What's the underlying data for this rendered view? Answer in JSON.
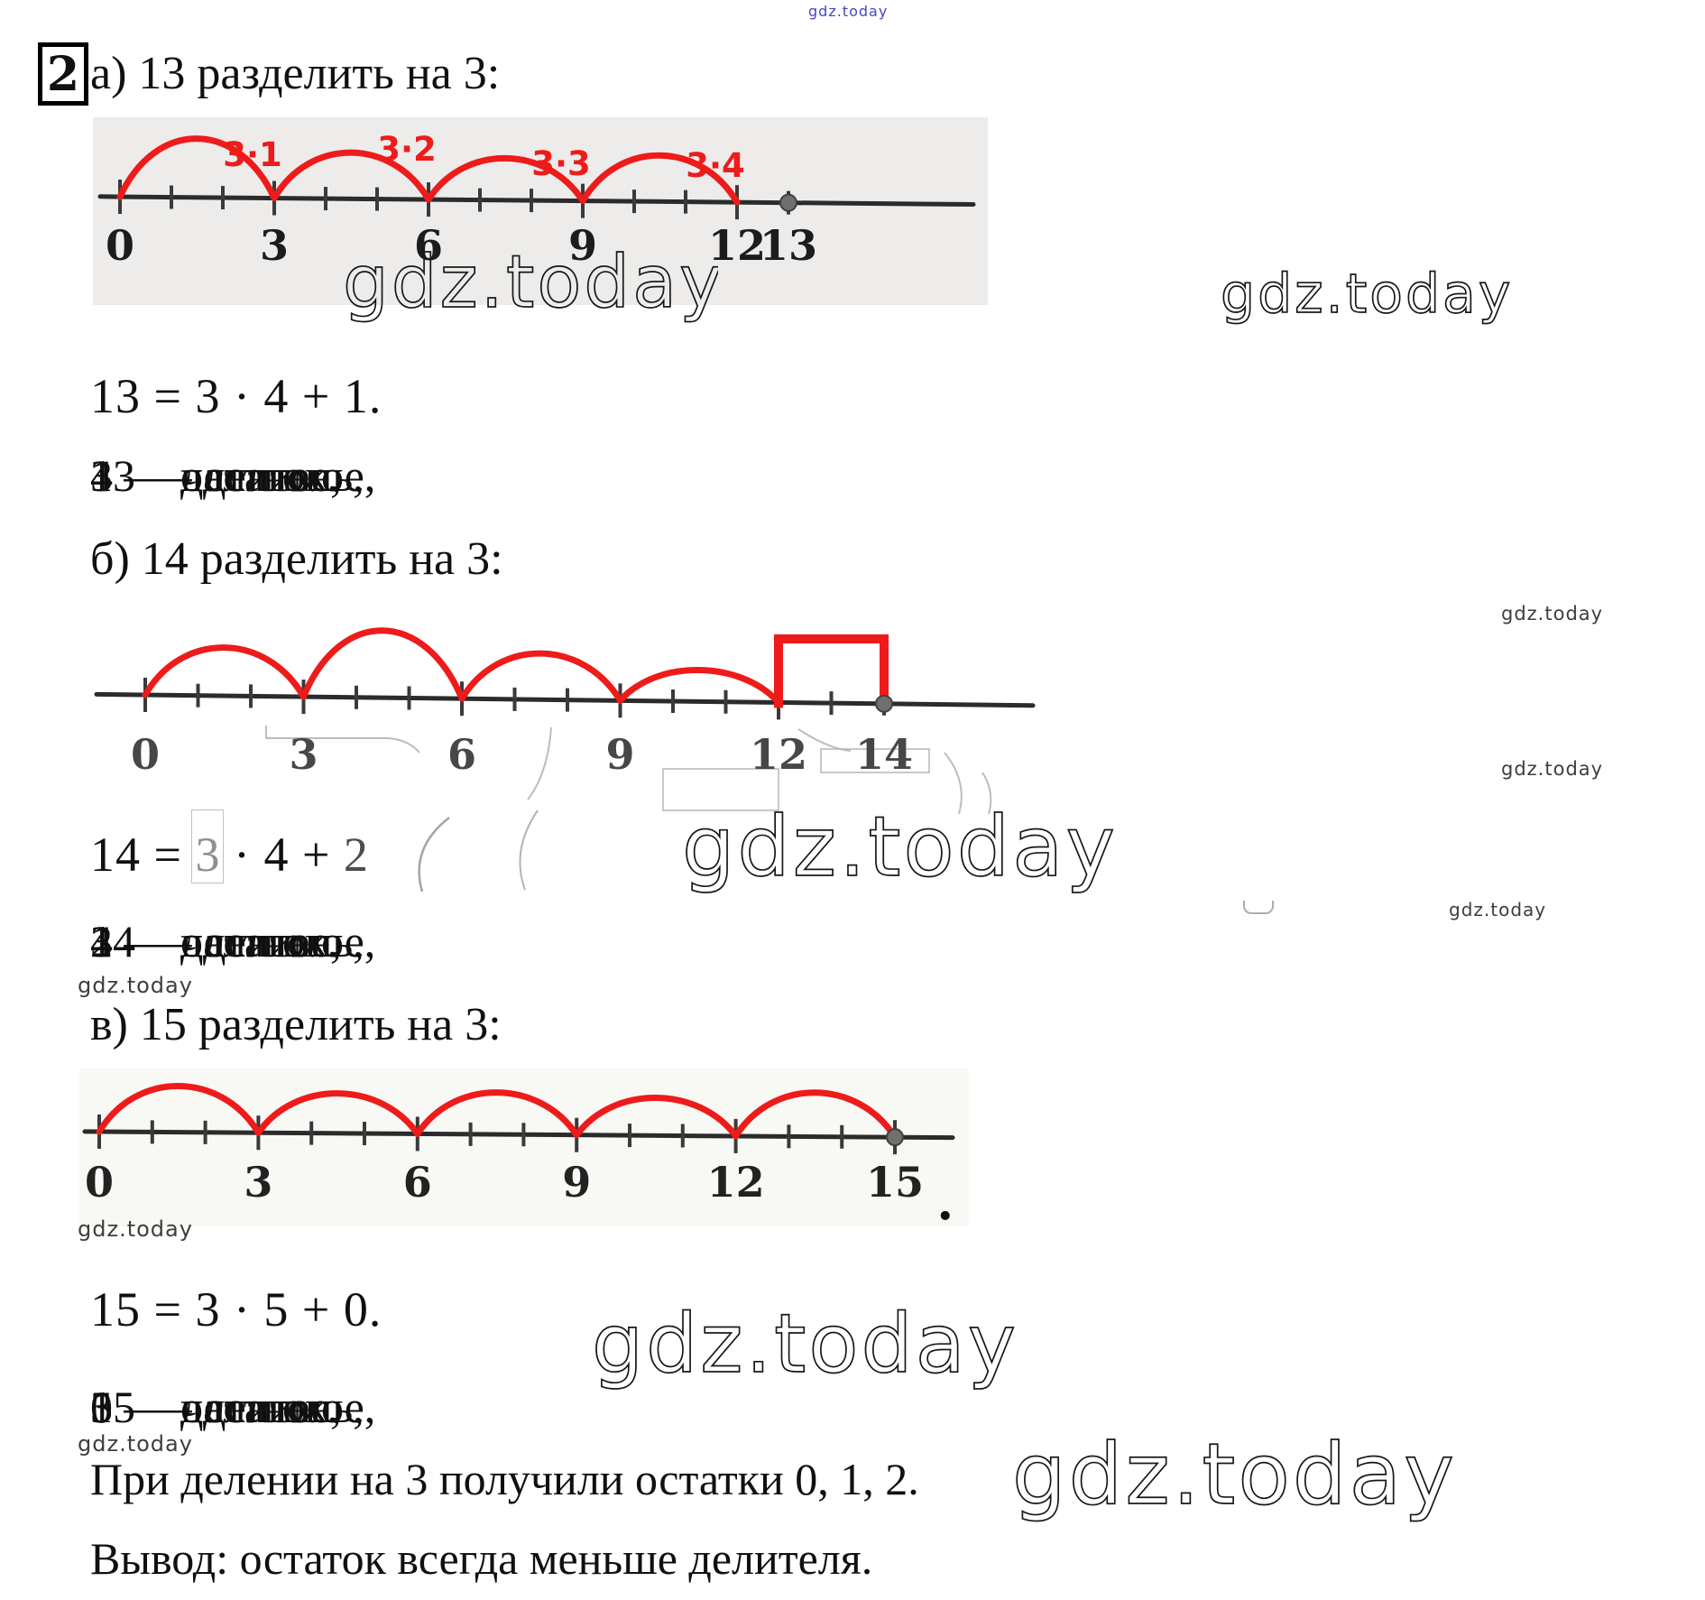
{
  "watermarks": {
    "brand": "gdz.today"
  },
  "problem": {
    "number": "2"
  },
  "sections": [
    {
      "heading": "а) 13 разделить на 3:",
      "equation": "13 = 3 · 4 + 1.",
      "terms": [
        "13 — делимое,",
        "3 — делитель,",
        "4 — частное,",
        "1 — остаток."
      ],
      "numberline": {
        "labeled_ticks": [
          "0",
          "3",
          "6",
          "9",
          "12",
          "13"
        ],
        "arc_labels": [
          "3·1",
          "3·2",
          "3·3",
          "3·4"
        ],
        "arcs": [
          "0–3",
          "3–6",
          "6–9",
          "9–12"
        ],
        "endpoint_dot": 13
      }
    },
    {
      "heading": "б) 14 разделить на 3:",
      "equation_parts": {
        "lhs": "14 = ",
        "divisor": "3",
        "middle": " · 4 + ",
        "remainder": "2"
      },
      "terms": [
        "14 — делимое,",
        "3 — делитель,",
        "4 — частное,",
        "2 — остаток."
      ],
      "numberline": {
        "labeled_ticks": [
          "0",
          "3",
          "6",
          "9",
          "12",
          "14"
        ],
        "arcs": [
          "0–3",
          "3–6",
          "6–9",
          "9–12"
        ],
        "bracket": "12–14",
        "endpoint_dot": 14
      }
    },
    {
      "heading": "в) 15 разделить на 3:",
      "equation": "15 = 3 · 5 + 0.",
      "terms": [
        "15 — делимое,",
        "3 — делитель,",
        "5 — частное,",
        "0 — остаток."
      ],
      "numberline": {
        "labeled_ticks": [
          "0",
          "3",
          "6",
          "9",
          "12",
          "15"
        ],
        "arcs": [
          "0–3",
          "3–6",
          "6–9",
          "9–12",
          "12–15"
        ],
        "endpoint_dot": 15
      },
      "trailing_period": "."
    }
  ],
  "conclusion": {
    "line1": "При делении на 3 получили остатки 0, 1, 2.",
    "line2": "Вывод: остаток всегда меньше делителя."
  },
  "colors": {
    "red": "#ee1b1b",
    "text": "#101010",
    "blue_watermark": "#4545c9"
  }
}
